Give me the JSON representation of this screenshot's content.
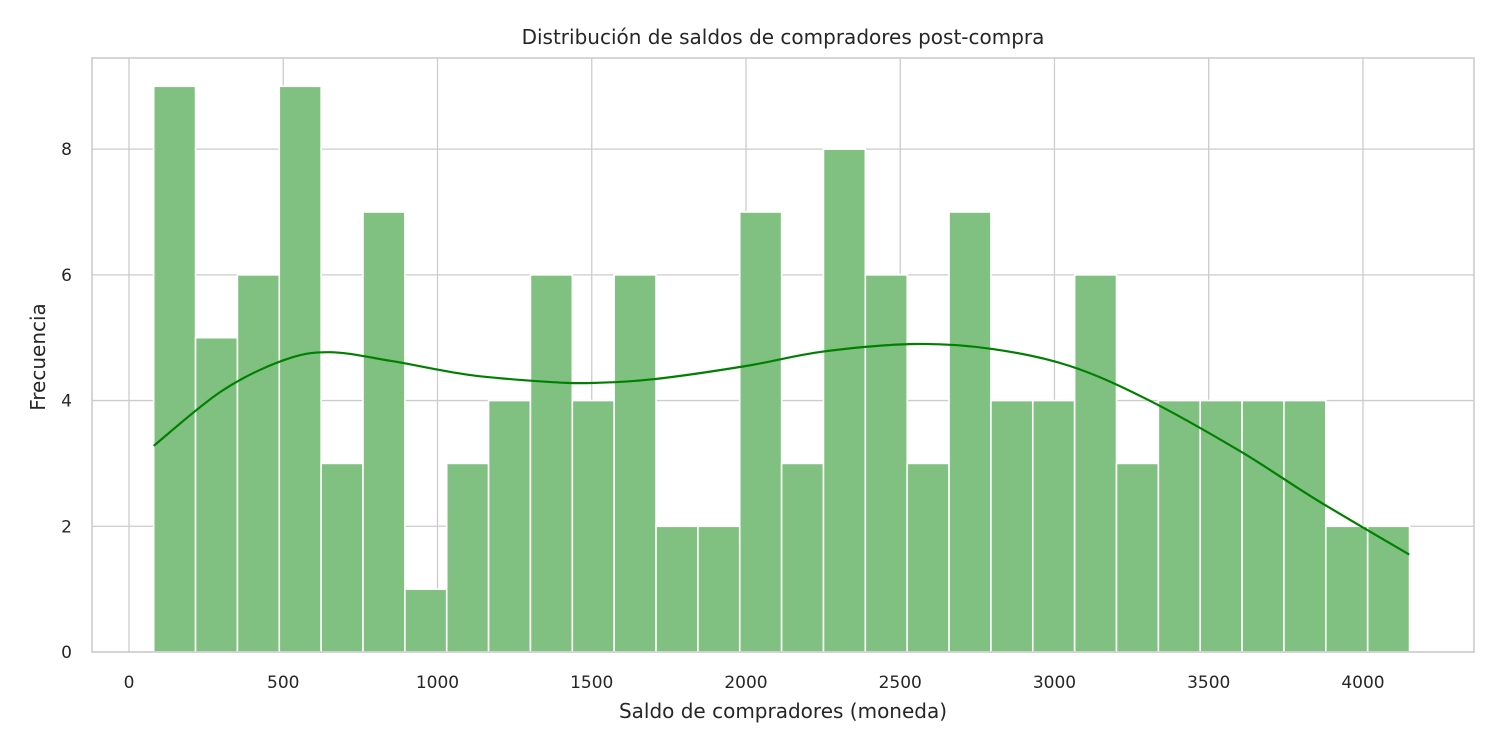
{
  "chart_data": {
    "type": "bar",
    "title": "Distribución de saldos de compradores post-compra",
    "xlabel": "Saldo de compradores (moneda)",
    "ylabel": "Frecuencia",
    "xlim": [
      -120,
      4360
    ],
    "ylim": [
      0,
      9.45
    ],
    "x_ticks": [
      0,
      500,
      1000,
      1500,
      2000,
      2500,
      3000,
      3500,
      4000
    ],
    "y_ticks": [
      0,
      2,
      4,
      6,
      8
    ],
    "grid": true,
    "bins": {
      "start": 80,
      "width": 135.7,
      "counts": [
        9,
        5,
        6,
        9,
        3,
        7,
        1,
        3,
        4,
        6,
        4,
        6,
        2,
        2,
        7,
        3,
        8,
        6,
        3,
        7,
        4,
        4,
        6,
        3,
        4,
        4,
        4,
        4,
        2,
        2
      ]
    },
    "kde": {
      "x": [
        80,
        300,
        500,
        650,
        850,
        1100,
        1350,
        1500,
        1700,
        2000,
        2250,
        2550,
        2800,
        3050,
        3300,
        3600,
        3850,
        4150
      ],
      "y": [
        3.28,
        4.15,
        4.64,
        4.77,
        4.63,
        4.41,
        4.3,
        4.28,
        4.34,
        4.55,
        4.78,
        4.9,
        4.82,
        4.55,
        4.02,
        3.2,
        2.42,
        1.55
      ]
    },
    "colors": {
      "bar_fill": "#80c080",
      "bar_edge": "#ffffff",
      "kde_line": "#008000"
    }
  }
}
